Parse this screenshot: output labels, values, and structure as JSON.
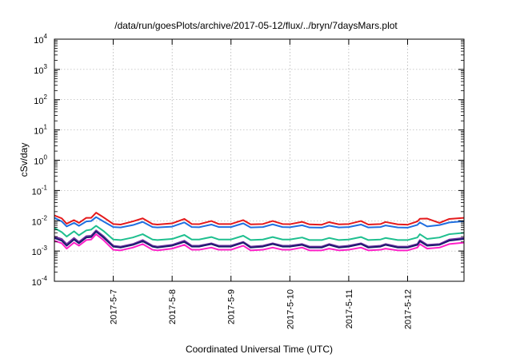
{
  "chart_data": {
    "type": "line",
    "title": "/data/run/goesPlots/archive/2017-05-12/flux/../bryn/7daysMars.plot",
    "xlabel": "Coordinated Universal Time (UTC)",
    "ylabel": "cSv/day",
    "yscale": "log",
    "ylim": [
      0.0001,
      10000
    ],
    "y_ticks": [
      {
        "value": 10000,
        "base": "10",
        "exp": "4"
      },
      {
        "value": 1000,
        "base": "10",
        "exp": "3"
      },
      {
        "value": 100,
        "base": "10",
        "exp": "2"
      },
      {
        "value": 10,
        "base": "10",
        "exp": "1"
      },
      {
        "value": 1,
        "base": "10",
        "exp": "0"
      },
      {
        "value": 0.1,
        "base": "10",
        "exp": "-1"
      },
      {
        "value": 0.01,
        "base": "10",
        "exp": "-2"
      },
      {
        "value": 0.001,
        "base": "10",
        "exp": "-3"
      },
      {
        "value": 0.0001,
        "base": "10",
        "exp": "-4"
      }
    ],
    "xlim": [
      "2017-05-06 00:00",
      "2017-05-12 23:00"
    ],
    "x_ticks": [
      {
        "value": "2017-05-07 00:00",
        "label": "2017-5-7"
      },
      {
        "value": "2017-05-08 00:00",
        "label": "2017-5-8"
      },
      {
        "value": "2017-05-09 00:00",
        "label": "2017-5-9"
      },
      {
        "value": "2017-05-10 00:00",
        "label": "2017-5-10"
      },
      {
        "value": "2017-05-11 00:00",
        "label": "2017-5-11"
      },
      {
        "value": "2017-05-12 00:00",
        "label": "2017-5-12"
      }
    ],
    "grid": true,
    "x": [
      "2017-05-06 00:00",
      "2017-05-06 03:00",
      "2017-05-06 05:00",
      "2017-05-06 08:00",
      "2017-05-06 10:00",
      "2017-05-06 13:00",
      "2017-05-06 15:00",
      "2017-05-06 17:00",
      "2017-05-06 20:00",
      "2017-05-07 00:00",
      "2017-05-07 03:00",
      "2017-05-07 08:00",
      "2017-05-07 12:00",
      "2017-05-07 16:00",
      "2017-05-07 18:00",
      "2017-05-08 00:00",
      "2017-05-08 05:00",
      "2017-05-08 08:00",
      "2017-05-08 11:00",
      "2017-05-08 16:00",
      "2017-05-08 19:00",
      "2017-05-09 00:00",
      "2017-05-09 05:00",
      "2017-05-09 08:00",
      "2017-05-09 13:00",
      "2017-05-09 17:00",
      "2017-05-09 21:00",
      "2017-05-10 00:00",
      "2017-05-10 05:00",
      "2017-05-10 08:00",
      "2017-05-10 13:00",
      "2017-05-10 16:00",
      "2017-05-10 20:00",
      "2017-05-11 00:00",
      "2017-05-11 05:00",
      "2017-05-11 08:00",
      "2017-05-11 13:00",
      "2017-05-11 15:00",
      "2017-05-11 20:00",
      "2017-05-12 00:00",
      "2017-05-12 04:00",
      "2017-05-12 05:00",
      "2017-05-12 08:00",
      "2017-05-12 13:00",
      "2017-05-12 17:00",
      "2017-05-12 23:00"
    ],
    "series": [
      {
        "color": "#e41a1c",
        "values": [
          0.015,
          0.012,
          0.008,
          0.0105,
          0.0085,
          0.0125,
          0.0125,
          0.0185,
          0.013,
          0.0078,
          0.0075,
          0.0095,
          0.012,
          0.0078,
          0.0075,
          0.0082,
          0.0115,
          0.0078,
          0.0077,
          0.0098,
          0.0078,
          0.0078,
          0.0105,
          0.0076,
          0.0078,
          0.0098,
          0.0078,
          0.0077,
          0.0092,
          0.0076,
          0.0074,
          0.009,
          0.0076,
          0.0078,
          0.0098,
          0.0075,
          0.0078,
          0.0091,
          0.0076,
          0.0074,
          0.0095,
          0.0116,
          0.0118,
          0.0085,
          0.0115,
          0.0125
        ]
      },
      {
        "color": "#1f6fe0",
        "values": [
          0.0125,
          0.0095,
          0.0065,
          0.0085,
          0.0068,
          0.0095,
          0.0098,
          0.0132,
          0.0095,
          0.0062,
          0.006,
          0.0072,
          0.0092,
          0.0062,
          0.006,
          0.0064,
          0.0088,
          0.0062,
          0.0061,
          0.0075,
          0.0062,
          0.0062,
          0.0082,
          0.006,
          0.0062,
          0.0076,
          0.0062,
          0.0061,
          0.0071,
          0.006,
          0.0059,
          0.0069,
          0.006,
          0.0062,
          0.0075,
          0.006,
          0.0062,
          0.007,
          0.006,
          0.0059,
          0.0073,
          0.0088,
          0.0065,
          0.0072,
          0.0088,
          0.0096
        ]
      },
      {
        "color": "#1fbf8f",
        "values": [
          0.0058,
          0.0042,
          0.003,
          0.0045,
          0.0033,
          0.0048,
          0.0051,
          0.0068,
          0.0046,
          0.0024,
          0.0023,
          0.0028,
          0.0036,
          0.0024,
          0.0023,
          0.0025,
          0.0034,
          0.0024,
          0.0024,
          0.0029,
          0.0024,
          0.0024,
          0.0032,
          0.0023,
          0.0024,
          0.0029,
          0.0024,
          0.0024,
          0.0028,
          0.0023,
          0.0023,
          0.0027,
          0.0023,
          0.0024,
          0.0029,
          0.0023,
          0.0024,
          0.0027,
          0.0023,
          0.0023,
          0.0028,
          0.0036,
          0.0025,
          0.0028,
          0.0036,
          0.004
        ]
      },
      {
        "color": "#7030a0",
        "values": [
          0.003,
          0.0025,
          0.0017,
          0.0027,
          0.002,
          0.0031,
          0.0032,
          0.0048,
          0.0031,
          0.0015,
          0.0014,
          0.0017,
          0.0023,
          0.0015,
          0.0014,
          0.0016,
          0.0022,
          0.0015,
          0.0015,
          0.0018,
          0.0015,
          0.0015,
          0.002,
          0.0014,
          0.0015,
          0.0018,
          0.0015,
          0.0015,
          0.0017,
          0.0014,
          0.0014,
          0.0017,
          0.0014,
          0.0015,
          0.0018,
          0.0014,
          0.0015,
          0.0017,
          0.0014,
          0.0014,
          0.0017,
          0.0023,
          0.0016,
          0.0017,
          0.0024,
          0.0027
        ]
      },
      {
        "color": "#1a1a6e",
        "values": [
          0.0027,
          0.0022,
          0.0015,
          0.0024,
          0.0018,
          0.0028,
          0.0029,
          0.0044,
          0.0028,
          0.0014,
          0.0013,
          0.0016,
          0.0021,
          0.0014,
          0.0013,
          0.0015,
          0.002,
          0.0014,
          0.0014,
          0.0017,
          0.0014,
          0.0014,
          0.0019,
          0.0013,
          0.0014,
          0.0017,
          0.0014,
          0.0014,
          0.0016,
          0.0013,
          0.0013,
          0.0016,
          0.0013,
          0.0014,
          0.0017,
          0.0013,
          0.0014,
          0.0016,
          0.0013,
          0.0013,
          0.0016,
          0.0021,
          0.0015,
          0.0016,
          0.0022,
          0.0025
        ]
      },
      {
        "color": "#ff1fc8",
        "values": [
          0.0022,
          0.0018,
          0.0012,
          0.0019,
          0.0015,
          0.0023,
          0.0024,
          0.0036,
          0.0023,
          0.0011,
          0.00105,
          0.0013,
          0.0017,
          0.0011,
          0.00105,
          0.0012,
          0.0016,
          0.0011,
          0.0011,
          0.0013,
          0.0011,
          0.0011,
          0.0015,
          0.00105,
          0.0011,
          0.0013,
          0.0011,
          0.0011,
          0.0013,
          0.00105,
          0.00105,
          0.0012,
          0.00105,
          0.0011,
          0.0013,
          0.00105,
          0.0011,
          0.0012,
          0.00105,
          0.00105,
          0.0013,
          0.0017,
          0.0012,
          0.0013,
          0.0017,
          0.0019
        ]
      }
    ]
  }
}
